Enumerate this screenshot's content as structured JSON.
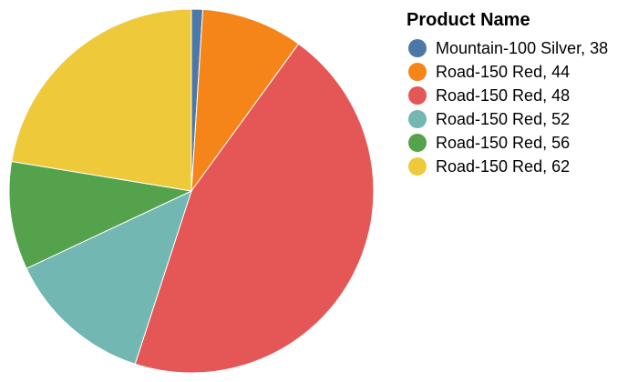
{
  "chart_data": {
    "type": "pie",
    "legend": {
      "title": "Product Name",
      "placement": "right"
    },
    "slices": [
      {
        "label": "Mountain-100 Silver, 38",
        "value": 1,
        "color": "#4c78a8"
      },
      {
        "label": "Road-150 Red, 44",
        "value": 9,
        "color": "#f58518"
      },
      {
        "label": "Road-150 Red, 48",
        "value": 45,
        "color": "#e45756"
      },
      {
        "label": "Road-150 Red, 52",
        "value": 13,
        "color": "#72b7b2"
      },
      {
        "label": "Road-150 Red, 56",
        "value": 9.6,
        "color": "#54a24b"
      },
      {
        "label": "Road-150 Red, 62",
        "value": 22.4,
        "color": "#eeca3b"
      }
    ]
  }
}
